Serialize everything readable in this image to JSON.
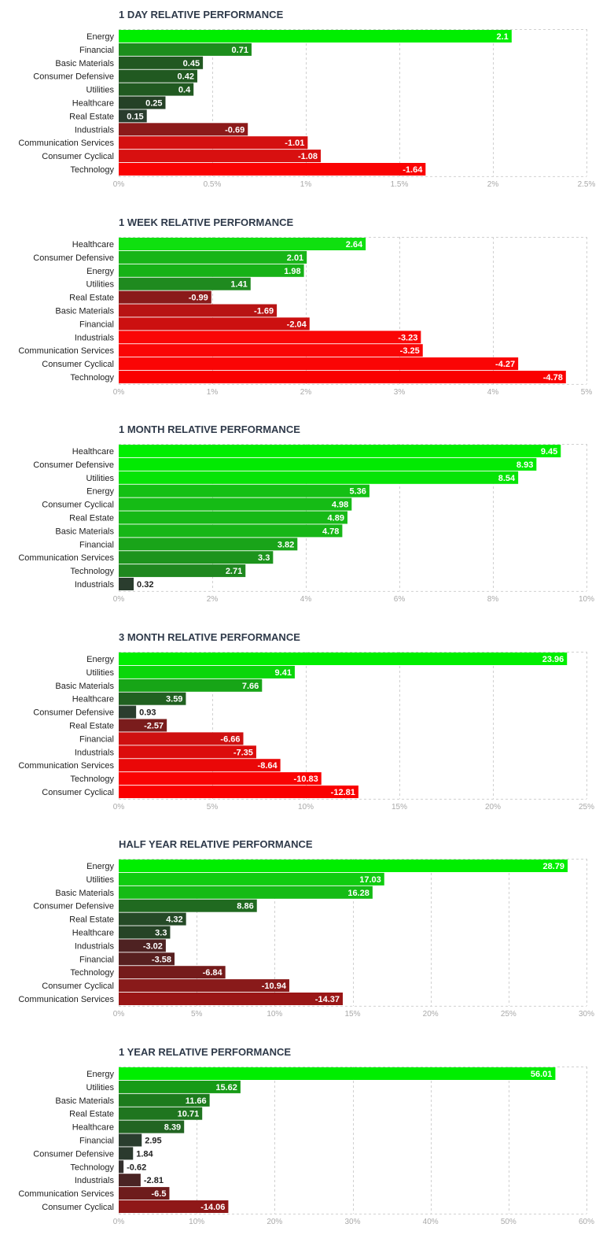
{
  "chart_data": [
    {
      "type": "bar",
      "orientation": "horizontal",
      "title": "1 DAY RELATIVE PERFORMANCE",
      "categories": [
        "Energy",
        "Financial",
        "Basic Materials",
        "Consumer Defensive",
        "Utilities",
        "Healthcare",
        "Real Estate",
        "Industrials",
        "Communication Services",
        "Consumer Cyclical",
        "Technology"
      ],
      "values": [
        2.1,
        0.71,
        0.45,
        0.42,
        0.4,
        0.25,
        0.15,
        -0.69,
        -1.01,
        -1.08,
        -1.64
      ],
      "value_labels": [
        "2.1",
        "0.71",
        "0.45",
        "0.42",
        "0.4",
        "0.25",
        "0.15",
        "-0.69",
        "-1.01",
        "-1.08",
        "-1.64"
      ],
      "bar_colors": [
        "#00ee00",
        "#1d8d1d",
        "#215821",
        "#215921",
        "#215a21",
        "#254126",
        "#2a3d2e",
        "#8c1a1a",
        "#d41010",
        "#d81010",
        "#fa0303"
      ],
      "xlim": [
        0,
        2.5
      ],
      "ticks": [
        0,
        0.5,
        1,
        1.5,
        2,
        2.5
      ],
      "tick_labels": [
        "0%",
        "0.5%",
        "1%",
        "1.5%",
        "2%",
        "2.5%"
      ],
      "grid": true
    },
    {
      "type": "bar",
      "orientation": "horizontal",
      "title": "1 WEEK RELATIVE PERFORMANCE",
      "categories": [
        "Healthcare",
        "Consumer Defensive",
        "Energy",
        "Utilities",
        "Real Estate",
        "Basic Materials",
        "Financial",
        "Industrials",
        "Communication Services",
        "Consumer Cyclical",
        "Technology"
      ],
      "values": [
        2.64,
        2.01,
        1.98,
        1.41,
        -0.99,
        -1.69,
        -2.04,
        -3.23,
        -3.25,
        -4.27,
        -4.78
      ],
      "value_labels": [
        "2.64",
        "2.01",
        "1.98",
        "1.41",
        "-0.99",
        "-1.69",
        "-2.04",
        "-3.23",
        "-3.25",
        "-4.27",
        "-4.78"
      ],
      "bar_colors": [
        "#0fe00f",
        "#17b517",
        "#17b217",
        "#1f8a1f",
        "#8a1a1a",
        "#b81414",
        "#cc1010",
        "#fa0606",
        "#fa0606",
        "#fa0505",
        "#fa0000"
      ],
      "xlim": [
        0,
        5
      ],
      "ticks": [
        0,
        1,
        2,
        3,
        4,
        5
      ],
      "tick_labels": [
        "0%",
        "1%",
        "2%",
        "3%",
        "4%",
        "5%"
      ],
      "grid": true
    },
    {
      "type": "bar",
      "orientation": "horizontal",
      "title": "1 MONTH RELATIVE PERFORMANCE",
      "categories": [
        "Healthcare",
        "Consumer Defensive",
        "Utilities",
        "Energy",
        "Consumer Cyclical",
        "Real Estate",
        "Basic Materials",
        "Financial",
        "Communication Services",
        "Technology",
        "Industrials"
      ],
      "values": [
        9.45,
        8.93,
        8.54,
        5.36,
        4.98,
        4.89,
        4.78,
        3.82,
        3.3,
        2.71,
        0.32
      ],
      "value_labels": [
        "9.45",
        "8.93",
        "8.54",
        "5.36",
        "4.98",
        "4.89",
        "4.78",
        "3.82",
        "3.3",
        "2.71",
        "0.32"
      ],
      "bar_colors": [
        "#00ee00",
        "#02ea02",
        "#06e406",
        "#14c014",
        "#15bb15",
        "#16b916",
        "#17b617",
        "#19a419",
        "#1d941d",
        "#1f881f",
        "#2a3d2e"
      ],
      "xlim": [
        0,
        10
      ],
      "ticks": [
        0,
        2,
        4,
        6,
        8,
        10
      ],
      "tick_labels": [
        "0%",
        "2%",
        "4%",
        "6%",
        "8%",
        "10%"
      ],
      "grid": true
    },
    {
      "type": "bar",
      "orientation": "horizontal",
      "title": "3 MONTH RELATIVE PERFORMANCE",
      "categories": [
        "Energy",
        "Utilities",
        "Basic Materials",
        "Healthcare",
        "Consumer Defensive",
        "Real Estate",
        "Financial",
        "Industrials",
        "Communication Services",
        "Technology",
        "Consumer Cyclical"
      ],
      "values": [
        23.96,
        9.41,
        7.66,
        3.59,
        0.93,
        -2.57,
        -6.66,
        -7.35,
        -8.64,
        -10.83,
        -12.81
      ],
      "value_labels": [
        "23.96",
        "9.41",
        "7.66",
        "3.59",
        "0.93",
        "-2.57",
        "-6.66",
        "-7.35",
        "-8.64",
        "-10.83",
        "-12.81"
      ],
      "bar_colors": [
        "#00ee00",
        "#0ad60a",
        "#17a517",
        "#216121",
        "#2a3d2e",
        "#7a1c1c",
        "#cf1010",
        "#dc0c0c",
        "#ea0808",
        "#fa0303",
        "#fa0000"
      ],
      "xlim": [
        0,
        25
      ],
      "ticks": [
        0,
        5,
        10,
        15,
        20,
        25
      ],
      "tick_labels": [
        "0%",
        "5%",
        "10%",
        "15%",
        "20%",
        "25%"
      ],
      "grid": true
    },
    {
      "type": "bar",
      "orientation": "horizontal",
      "title": "HALF YEAR RELATIVE PERFORMANCE",
      "categories": [
        "Energy",
        "Utilities",
        "Basic Materials",
        "Consumer Defensive",
        "Real Estate",
        "Healthcare",
        "Industrials",
        "Financial",
        "Technology",
        "Consumer Cyclical",
        "Communication Services"
      ],
      "values": [
        28.79,
        17.03,
        16.28,
        8.86,
        4.32,
        3.3,
        -3.02,
        -3.58,
        -6.84,
        -10.94,
        -14.37
      ],
      "value_labels": [
        "28.79",
        "17.03",
        "16.28",
        "8.86",
        "4.32",
        "3.3",
        "-3.02",
        "-3.58",
        "-6.84",
        "-10.94",
        "-14.37"
      ],
      "bar_colors": [
        "#00ee00",
        "#10cc10",
        "#15bb15",
        "#206a20",
        "#254a27",
        "#264427",
        "#4e2222",
        "#582020",
        "#751b1b",
        "#891a1a",
        "#9a1616"
      ],
      "xlim": [
        0,
        30
      ],
      "ticks": [
        0,
        5,
        10,
        15,
        20,
        25,
        30
      ],
      "tick_labels": [
        "0%",
        "5%",
        "10%",
        "15%",
        "20%",
        "25%",
        "30%"
      ],
      "grid": true
    },
    {
      "type": "bar",
      "orientation": "horizontal",
      "title": "1 YEAR RELATIVE PERFORMANCE",
      "categories": [
        "Energy",
        "Utilities",
        "Basic Materials",
        "Real Estate",
        "Healthcare",
        "Financial",
        "Consumer Defensive",
        "Technology",
        "Industrials",
        "Communication Services",
        "Consumer Cyclical"
      ],
      "values": [
        56.01,
        15.62,
        11.66,
        10.71,
        8.39,
        2.95,
        1.84,
        -0.62,
        -2.81,
        -6.5,
        -14.06
      ],
      "value_labels": [
        "56.01",
        "15.62",
        "11.66",
        "10.71",
        "8.39",
        "2.95",
        "1.84",
        "-0.62",
        "-2.81",
        "-6.5",
        "-14.06"
      ],
      "bar_colors": [
        "#00ee00",
        "#179b17",
        "#1d7b1d",
        "#1f751f",
        "#226522",
        "#2a3d2e",
        "#2b3a2e",
        "#34302e",
        "#4a2424",
        "#6e1c1c",
        "#8f1818"
      ],
      "xlim": [
        0,
        60
      ],
      "ticks": [
        0,
        10,
        20,
        30,
        40,
        50,
        60
      ],
      "tick_labels": [
        "0%",
        "10%",
        "20%",
        "30%",
        "40%",
        "50%",
        "60%"
      ],
      "grid": true
    }
  ]
}
